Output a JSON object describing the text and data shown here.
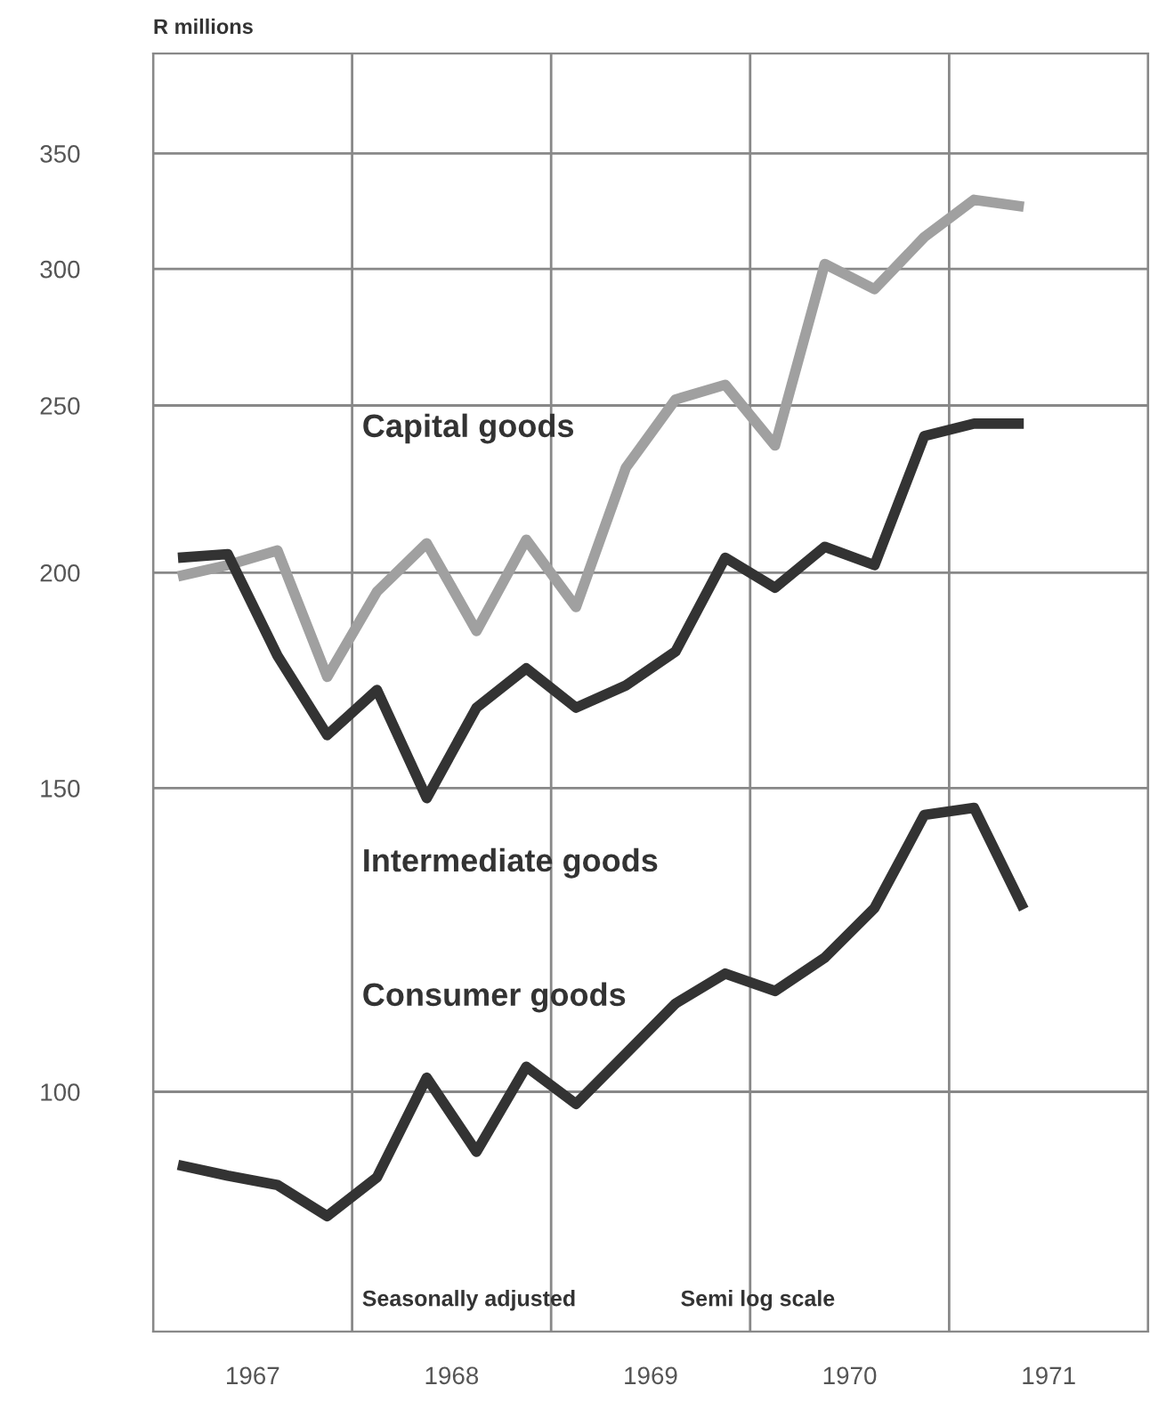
{
  "chart_data": {
    "type": "line",
    "ylabel": "R millions",
    "log": true,
    "xlim": [
      1967,
      1972
    ],
    "ylim": [
      72.6,
      400
    ],
    "xticks": [
      {
        "value": 1967,
        "label": null
      },
      {
        "value": 1967.5,
        "label": "1967"
      },
      {
        "value": 1968,
        "label": null
      },
      {
        "value": 1968.5,
        "label": "1968"
      },
      {
        "value": 1969,
        "label": null
      },
      {
        "value": 1969.5,
        "label": "1969"
      },
      {
        "value": 1970,
        "label": null
      },
      {
        "value": 1970.5,
        "label": "1970"
      },
      {
        "value": 1971,
        "label": null
      },
      {
        "value": 1971.5,
        "label": "1971"
      },
      {
        "value": 1972,
        "label": null
      }
    ],
    "yticks": [
      100,
      150,
      200,
      250,
      300,
      350
    ],
    "grid": true,
    "legend": false,
    "marker": "none",
    "line_style": "solid",
    "x": [
      1967.125,
      1967.375,
      1967.625,
      1967.875,
      1968.125,
      1968.375,
      1968.625,
      1968.875,
      1969.125,
      1969.375,
      1969.625,
      1969.875,
      1970.125,
      1970.375,
      1970.625,
      1970.875,
      1971.125,
      1971.375
    ],
    "series": [
      {
        "name": "Capital goods",
        "color": "#a0a0a0",
        "values": [
          199,
          202,
          206,
          174,
          195,
          208,
          185,
          209,
          191,
          230,
          252,
          257,
          237,
          302,
          292,
          313,
          329,
          326
        ]
      },
      {
        "name": "Intermediate goods",
        "color": "#333333",
        "values": [
          204,
          205,
          179,
          161,
          171,
          148,
          167,
          176,
          167,
          172,
          180,
          204,
          196,
          207,
          202,
          240,
          244,
          244
        ]
      },
      {
        "name": "Consumer goods",
        "color": "#333333",
        "values": [
          90.7,
          89.4,
          88.3,
          84.7,
          89.2,
          101.9,
          92.3,
          103.4,
          98.4,
          105.2,
          112.5,
          117.1,
          114.4,
          119.6,
          127.8,
          144.7,
          146.1,
          127.6
        ]
      }
    ],
    "annotations": [
      "Seasonally adjusted",
      "Semi log scale"
    ]
  }
}
